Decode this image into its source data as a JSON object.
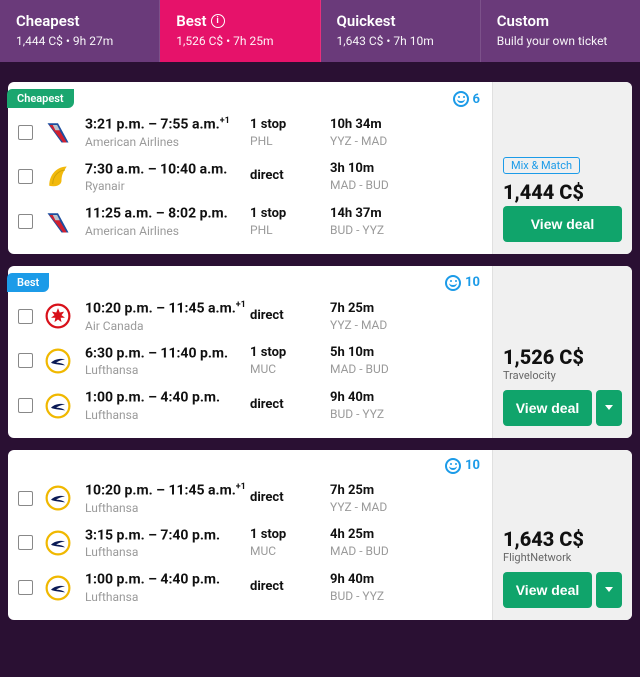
{
  "tabs": [
    {
      "title": "Cheapest",
      "sub": "1,444 C$ • 9h 27m",
      "active": false
    },
    {
      "title": "Best",
      "sub": "1,526 C$ • 7h 25m",
      "active": true,
      "info": true
    },
    {
      "title": "Quickest",
      "sub": "1,643 C$ • 7h 10m",
      "active": false
    },
    {
      "title": "Custom",
      "sub": "Build your own ticket",
      "active": false
    }
  ],
  "cards": [
    {
      "badge": {
        "text": "Cheapest",
        "kind": "cheapest"
      },
      "smile": "6",
      "price": "1,444 C$",
      "mixmatch": "Mix & Match",
      "provider": null,
      "deal_label": "View deal",
      "has_caret": false,
      "legs": [
        {
          "logo": "aa",
          "times": "3:21 p.m. – 7:55 a.m.",
          "plus": "+1",
          "airline": "American Airlines",
          "stops": "1 stop",
          "via": "PHL",
          "duration": "10h 34m",
          "route": "YYZ - MAD"
        },
        {
          "logo": "ry",
          "times": "7:30 a.m. – 10:40 a.m.",
          "plus": "",
          "airline": "Ryanair",
          "stops": "direct",
          "via": "",
          "duration": "3h 10m",
          "route": "MAD - BUD"
        },
        {
          "logo": "aa",
          "times": "11:25 a.m. – 8:02 p.m.",
          "plus": "",
          "airline": "American Airlines",
          "stops": "1 stop",
          "via": "PHL",
          "duration": "14h 37m",
          "route": "BUD - YYZ"
        }
      ]
    },
    {
      "badge": {
        "text": "Best",
        "kind": "best"
      },
      "smile": "10",
      "price": "1,526 C$",
      "mixmatch": null,
      "provider": "Travelocity",
      "deal_label": "View deal",
      "has_caret": true,
      "legs": [
        {
          "logo": "ac",
          "times": "10:20 p.m. – 11:45 a.m.",
          "plus": "+1",
          "airline": "Air Canada",
          "stops": "direct",
          "via": "",
          "duration": "7h 25m",
          "route": "YYZ - MAD"
        },
        {
          "logo": "lh",
          "times": "6:30 p.m. – 11:40 p.m.",
          "plus": "",
          "airline": "Lufthansa",
          "stops": "1 stop",
          "via": "MUC",
          "duration": "5h 10m",
          "route": "MAD - BUD"
        },
        {
          "logo": "lh",
          "times": "1:00 p.m. – 4:40 p.m.",
          "plus": "",
          "airline": "Lufthansa",
          "stops": "direct",
          "via": "",
          "duration": "9h 40m",
          "route": "BUD - YYZ"
        }
      ]
    },
    {
      "badge": null,
      "smile": "10",
      "price": "1,643 C$",
      "mixmatch": null,
      "provider": "FlightNetwork",
      "deal_label": "View deal",
      "has_caret": true,
      "legs": [
        {
          "logo": "lh",
          "times": "10:20 p.m. – 11:45 a.m.",
          "plus": "+1",
          "airline": "Lufthansa",
          "stops": "direct",
          "via": "",
          "duration": "7h 25m",
          "route": "YYZ - MAD"
        },
        {
          "logo": "lh",
          "times": "3:15 p.m. – 7:40 p.m.",
          "plus": "",
          "airline": "Lufthansa",
          "stops": "1 stop",
          "via": "MUC",
          "duration": "4h 25m",
          "route": "MAD - BUD"
        },
        {
          "logo": "lh",
          "times": "1:00 p.m. – 4:40 p.m.",
          "plus": "",
          "airline": "Lufthansa",
          "stops": "direct",
          "via": "",
          "duration": "9h 40m",
          "route": "BUD - YYZ"
        }
      ]
    }
  ]
}
